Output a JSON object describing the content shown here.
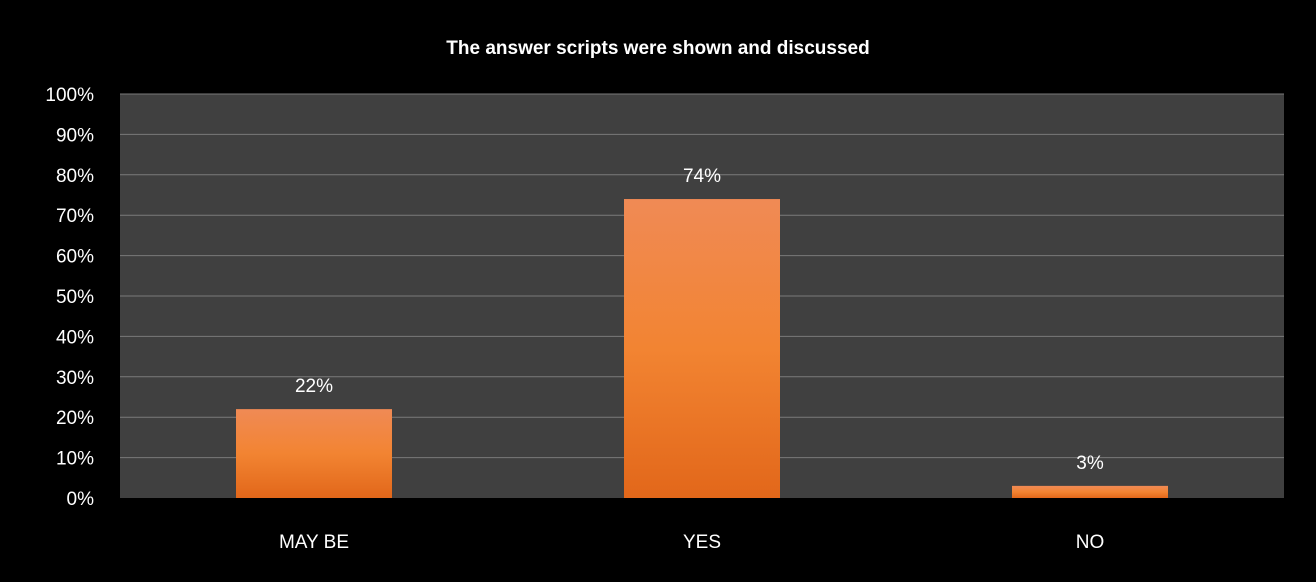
{
  "chart_data": {
    "type": "bar",
    "title": "The answer scripts were shown and discussed",
    "xlabel": "",
    "ylabel": "",
    "categories": [
      "MAY BE",
      "YES",
      "NO"
    ],
    "values": [
      22,
      74,
      3
    ],
    "value_labels": [
      "22%",
      "74%",
      "3%"
    ],
    "ylim": [
      0,
      100
    ],
    "y_ticks": [
      0,
      10,
      20,
      30,
      40,
      50,
      60,
      70,
      80,
      90,
      100
    ],
    "y_tick_labels": [
      "0%",
      "10%",
      "20%",
      "30%",
      "40%",
      "50%",
      "60%",
      "70%",
      "80%",
      "90%",
      "100%"
    ],
    "grid": true,
    "legend": "none",
    "colors": {
      "background": "#000000",
      "plot_area": "#404040",
      "gridline": "#7a7a7a",
      "bar_top": "#f08a55",
      "bar_mid": "#f28432",
      "bar_bottom": "#e2671a",
      "text": "#ffffff"
    }
  }
}
